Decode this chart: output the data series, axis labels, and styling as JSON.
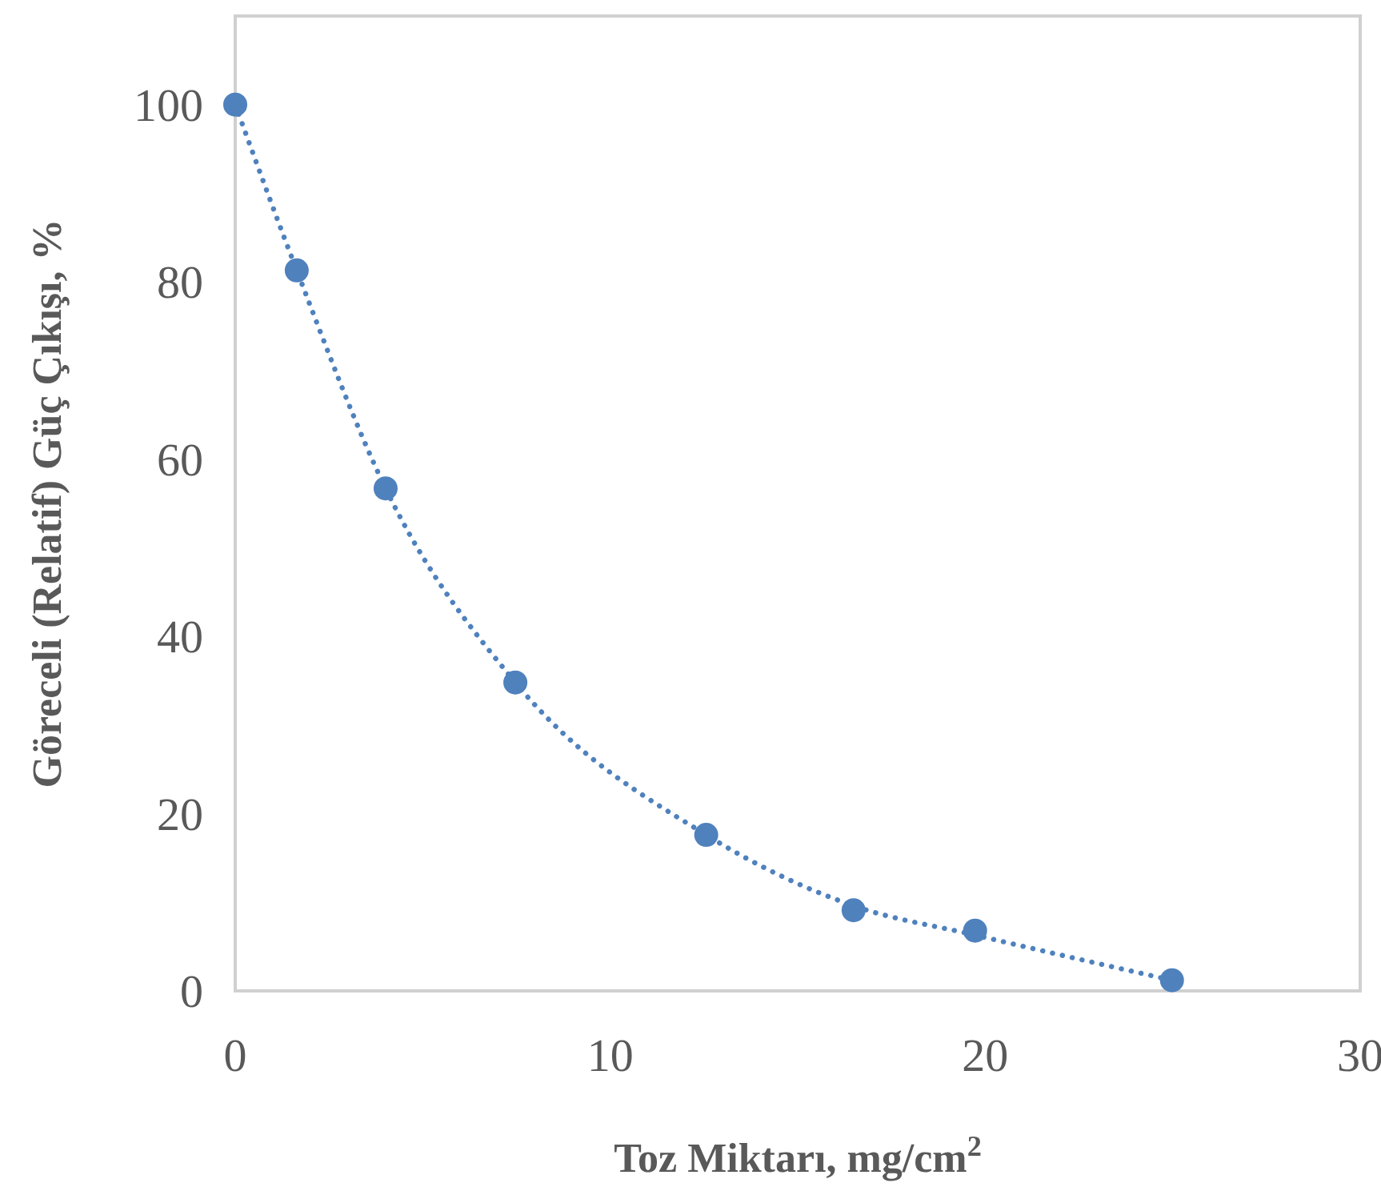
{
  "chart_data": {
    "type": "scatter",
    "xlabel": "Toz Miktarı, mg/cm$^{2}$",
    "ylabel": "Göreceli (Relatif) Güç Çıkışı, %",
    "xlim": [
      0,
      30
    ],
    "xticks": [
      0,
      10,
      20,
      30
    ],
    "ylim": [
      0,
      110
    ],
    "yticks": [
      0,
      20,
      40,
      60,
      80,
      100
    ],
    "grid": false,
    "series": [
      {
        "type": "scatter",
        "color": "#4f81bd",
        "marker": "circle",
        "x": [
          0,
          1.64,
          4.01,
          7.47,
          12.56,
          16.49,
          19.73,
          24.98
        ],
        "values": [
          100,
          81.3,
          56.7,
          34.8,
          17.6,
          9.1,
          6.8,
          1.2
        ]
      },
      {
        "type": "line",
        "color": "#4f81bd",
        "line_style": "dotted",
        "marker": "none",
        "x": [
          0,
          1.64,
          4.01,
          7.47,
          12.56,
          16.49,
          19.73,
          24.98
        ],
        "values": [
          100,
          81.3,
          56.7,
          34.8,
          17.6,
          9.6,
          6.3,
          1.2
        ]
      }
    ]
  }
}
